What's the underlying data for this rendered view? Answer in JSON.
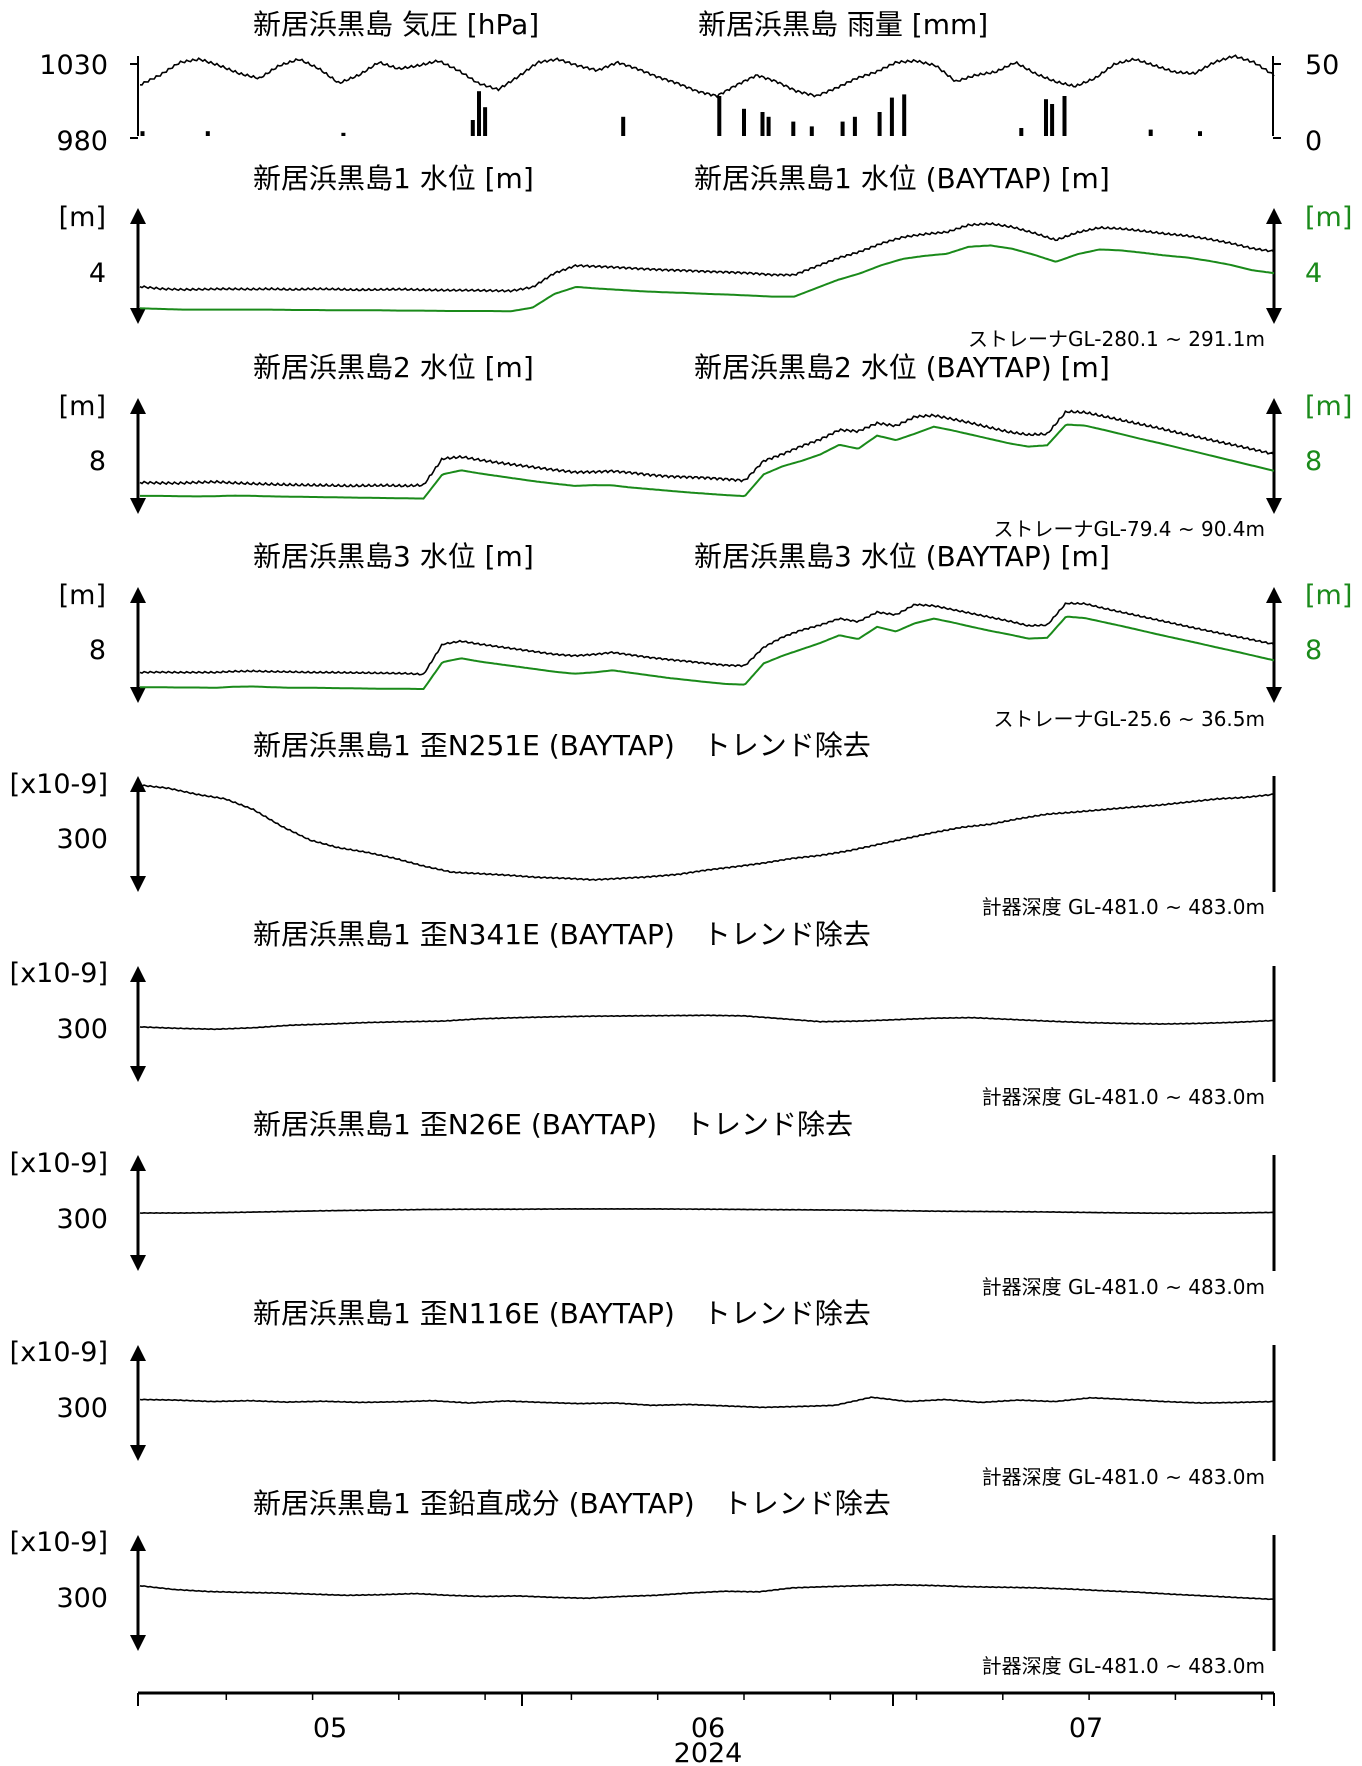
{
  "colors": {
    "primary": "#000000",
    "secondary": "#1a8a1a"
  },
  "time_axis": {
    "ticks": [
      "05",
      "06",
      "07"
    ],
    "year": "2024"
  },
  "chart_data": [
    {
      "id": "pressure_rain",
      "type": "line",
      "title_left": "新居浜黒島 気圧 [hPa]",
      "title_right": "新居浜黒島 雨量 [mm]",
      "y_ticks_left": [
        "1030",
        "980"
      ],
      "y_ticks_right": [
        "50",
        "0"
      ],
      "ylim_left": [
        980,
        1030
      ],
      "ylim_right": [
        0,
        50
      ],
      "x_range": [
        "2024-04-15",
        "2024-07-15"
      ],
      "series": [
        {
          "color": "#000000",
          "kind": "line",
          "values": [
            1012,
            1018,
            1026,
            1028,
            1024,
            1019,
            1016,
            1024,
            1028,
            1022,
            1013,
            1018,
            1026,
            1022,
            1024,
            1027,
            1021,
            1013,
            1009,
            1017,
            1026,
            1028,
            1024,
            1021,
            1026,
            1022,
            1017,
            1013,
            1008,
            1005,
            1012,
            1018,
            1014,
            1008,
            1005,
            1010,
            1016,
            1020,
            1026,
            1027,
            1024,
            1014,
            1018,
            1020,
            1026,
            1019,
            1014,
            1011,
            1016,
            1025,
            1028,
            1024,
            1020,
            1019,
            1026,
            1030,
            1026,
            1018
          ]
        },
        {
          "color": "#000000",
          "kind": "bars",
          "events": [
            [
              0.2,
              3
            ],
            [
              5.5,
              3
            ],
            [
              16.5,
              2
            ],
            [
              27,
              10
            ],
            [
              27.5,
              28
            ],
            [
              28,
              18
            ],
            [
              39.2,
              12
            ],
            [
              47,
              25
            ],
            [
              49,
              17
            ],
            [
              50.5,
              15
            ],
            [
              51,
              12
            ],
            [
              53,
              9
            ],
            [
              54.5,
              6
            ],
            [
              57,
              9
            ],
            [
              58,
              12
            ],
            [
              60,
              15
            ],
            [
              61,
              24
            ],
            [
              62,
              26
            ],
            [
              71.5,
              5
            ],
            [
              73.5,
              23
            ],
            [
              74,
              20
            ],
            [
              75,
              25
            ],
            [
              82,
              4
            ],
            [
              86,
              3
            ]
          ]
        }
      ]
    },
    {
      "id": "wl1",
      "type": "line",
      "title_left": "新居浜黒島1 水位 [m]",
      "title_right": "新居浜黒島1 水位 (BAYTAP) [m]",
      "unit_left": "[m]",
      "unit_right": "[m]",
      "tick_left": "4",
      "tick_right": "4",
      "note": "ストレーナGL-280.1 ~ 291.1m",
      "series": [
        {
          "color": "#000000",
          "values": [
            3.6,
            3.53,
            3.51,
            3.52,
            3.53,
            3.52,
            3.53,
            3.51,
            3.53,
            3.52,
            3.5,
            3.51,
            3.52,
            3.5,
            3.49,
            3.49,
            3.48,
            3.47,
            3.58,
            4.0,
            4.23,
            4.2,
            4.17,
            4.13,
            4.1,
            4.08,
            4.05,
            4.03,
            4.0,
            3.95,
            3.95,
            4.2,
            4.45,
            4.64,
            4.89,
            5.08,
            5.17,
            5.23,
            5.44,
            5.48,
            5.38,
            5.2,
            4.99,
            5.22,
            5.36,
            5.33,
            5.26,
            5.18,
            5.12,
            5.02,
            4.9,
            4.74,
            4.65
          ]
        },
        {
          "color": "#1a8a1a",
          "values": [
            2.95,
            2.93,
            2.91,
            2.91,
            2.91,
            2.91,
            2.91,
            2.9,
            2.9,
            2.89,
            2.89,
            2.89,
            2.88,
            2.88,
            2.87,
            2.87,
            2.87,
            2.86,
            2.97,
            3.38,
            3.59,
            3.54,
            3.5,
            3.46,
            3.43,
            3.41,
            3.38,
            3.36,
            3.33,
            3.3,
            3.3,
            3.55,
            3.8,
            3.99,
            4.24,
            4.43,
            4.52,
            4.58,
            4.79,
            4.83,
            4.73,
            4.55,
            4.34,
            4.57,
            4.71,
            4.68,
            4.61,
            4.53,
            4.47,
            4.37,
            4.25,
            4.09,
            4.0
          ]
        }
      ]
    },
    {
      "id": "wl2",
      "type": "line",
      "title_left": "新居浜黒島2 水位 [m]",
      "title_right": "新居浜黒島2 水位 (BAYTAP) [m]",
      "unit_left": "[m]",
      "unit_right": "[m]",
      "tick_left": "8",
      "tick_right": "8",
      "note": "ストレーナGL-79.4 ~ 90.4m",
      "series": [
        {
          "color": "#000000",
          "values": [
            7.35,
            7.33,
            7.32,
            7.35,
            7.37,
            7.33,
            7.3,
            7.28,
            7.26,
            7.25,
            7.24,
            7.22,
            7.23,
            7.24,
            7.22,
            7.25,
            8.23,
            8.3,
            8.18,
            8.08,
            7.99,
            7.9,
            7.81,
            7.73,
            7.74,
            7.77,
            7.71,
            7.63,
            7.57,
            7.55,
            7.52,
            7.47,
            7.42,
            8.15,
            8.4,
            8.7,
            8.95,
            9.3,
            9.25,
            9.55,
            9.45,
            9.79,
            9.84,
            9.7,
            9.55,
            9.38,
            9.22,
            9.12,
            9.15,
            9.98,
            9.95,
            9.8,
            9.65,
            9.5,
            9.35,
            9.18,
            9.03,
            8.87,
            8.72,
            8.56,
            8.4
          ]
        },
        {
          "color": "#1a8a1a",
          "values": [
            6.85,
            6.85,
            6.84,
            6.83,
            6.84,
            6.86,
            6.85,
            6.83,
            6.82,
            6.81,
            6.8,
            6.79,
            6.78,
            6.77,
            6.76,
            6.75,
            7.65,
            7.8,
            7.68,
            7.58,
            7.48,
            7.38,
            7.3,
            7.22,
            7.25,
            7.24,
            7.16,
            7.1,
            7.04,
            6.98,
            6.93,
            6.88,
            6.84,
            7.65,
            7.95,
            8.15,
            8.39,
            8.75,
            8.6,
            9.09,
            8.92,
            9.16,
            9.42,
            9.28,
            9.12,
            8.96,
            8.8,
            8.68,
            8.73,
            9.5,
            9.46,
            9.3,
            9.13,
            8.96,
            8.8,
            8.63,
            8.46,
            8.29,
            8.12,
            7.95,
            7.78
          ]
        }
      ]
    },
    {
      "id": "wl3",
      "type": "line",
      "title_left": "新居浜黒島3 水位 [m]",
      "title_right": "新居浜黒島3 水位 (BAYTAP) [m]",
      "unit_left": "[m]",
      "unit_right": "[m]",
      "tick_left": "8",
      "tick_right": "8",
      "note": "ストレーナGL-25.6 ~ 36.5m",
      "series": [
        {
          "color": "#000000",
          "values": [
            7.7,
            7.71,
            7.7,
            7.7,
            7.7,
            7.74,
            7.75,
            7.73,
            7.72,
            7.7,
            7.7,
            7.69,
            7.68,
            7.67,
            7.66,
            7.62,
            8.8,
            8.92,
            8.8,
            8.7,
            8.6,
            8.5,
            8.4,
            8.35,
            8.4,
            8.48,
            8.38,
            8.28,
            8.2,
            8.13,
            8.05,
            7.98,
            7.96,
            8.68,
            9.08,
            9.35,
            9.55,
            9.8,
            9.68,
            10.05,
            9.95,
            10.35,
            10.3,
            10.15,
            10.0,
            9.85,
            9.7,
            9.52,
            9.55,
            10.4,
            10.38,
            10.2,
            10.04,
            9.88,
            9.72,
            9.56,
            9.4,
            9.25,
            9.1,
            8.95,
            8.8
          ]
        },
        {
          "color": "#1a8a1a",
          "values": [
            7.12,
            7.12,
            7.11,
            7.11,
            7.1,
            7.14,
            7.15,
            7.12,
            7.1,
            7.1,
            7.09,
            7.08,
            7.07,
            7.06,
            7.06,
            7.05,
            8.1,
            8.25,
            8.12,
            8.02,
            7.92,
            7.82,
            7.72,
            7.65,
            7.7,
            7.78,
            7.68,
            7.58,
            7.48,
            7.4,
            7.32,
            7.25,
            7.22,
            8.05,
            8.35,
            8.6,
            8.85,
            9.15,
            9.0,
            9.48,
            9.3,
            9.62,
            9.8,
            9.65,
            9.48,
            9.32,
            9.18,
            9.02,
            9.05,
            9.88,
            9.82,
            9.66,
            9.5,
            9.33,
            9.16,
            9.0,
            8.84,
            8.67,
            8.51,
            8.34,
            8.17
          ]
        }
      ]
    },
    {
      "id": "strain_n251e",
      "type": "line",
      "title": "新居浜黒島1 歪N251E (BAYTAP)　トレンド除去",
      "unit": "[x10-9]",
      "tick": "300",
      "note": "計器深度 GL-481.0 ~ 483.0m",
      "series": [
        {
          "color": "#000000",
          "values": [
            450,
            440,
            420,
            405,
            370,
            315,
            270,
            245,
            230,
            210,
            185,
            165,
            160,
            155,
            148,
            145,
            140,
            145,
            150,
            158,
            172,
            183,
            195,
            210,
            220,
            235,
            255,
            275,
            295,
            312,
            322,
            340,
            355,
            362,
            370,
            378,
            385,
            395,
            405,
            410,
            420
          ]
        }
      ]
    },
    {
      "id": "strain_n341e",
      "type": "line",
      "title": "新居浜黒島1 歪N341E (BAYTAP)　トレンド除去",
      "unit": "[x10-9]",
      "tick": "300",
      "note": "計器深度 GL-481.0 ~ 483.0m",
      "series": [
        {
          "color": "#000000",
          "values": [
            290,
            285,
            282,
            287,
            296,
            300,
            305,
            308,
            310,
            318,
            322,
            325,
            327,
            328,
            329,
            330,
            328,
            318,
            308,
            310,
            315,
            320,
            322,
            316,
            310,
            305,
            302,
            300,
            302,
            306,
            312
          ]
        }
      ]
    },
    {
      "id": "strain_n26e",
      "type": "line",
      "title": "新居浜黒島1 歪N26E (BAYTAP)　トレンド除去",
      "unit": "[x10-9]",
      "tick": "300",
      "note": "計器深度 GL-481.0 ~ 483.0m",
      "series": [
        {
          "color": "#000000",
          "values": [
            300,
            300,
            302,
            305,
            308,
            310,
            312,
            313,
            313,
            314,
            314,
            314,
            313,
            312,
            311,
            310,
            308,
            306,
            305,
            304,
            302,
            300,
            299,
            300,
            302
          ]
        }
      ]
    },
    {
      "id": "strain_n116e",
      "type": "line",
      "title": "新居浜黒島1 歪N116E (BAYTAP)　トレンド除去",
      "unit": "[x10-9]",
      "tick": "300",
      "note": "計器深度 GL-481.0 ~ 483.0m",
      "series": [
        {
          "color": "#000000",
          "values": [
            312,
            310,
            305,
            308,
            303,
            306,
            302,
            304,
            308,
            300,
            307,
            302,
            298,
            300,
            292,
            295,
            290,
            285,
            288,
            292,
            320,
            305,
            312,
            302,
            310,
            305,
            318,
            312,
            305,
            300,
            302,
            305
          ]
        }
      ]
    },
    {
      "id": "strain_vertical",
      "type": "line",
      "title": "新居浜黒島1 歪鉛直成分 (BAYTAP)　トレンド除去",
      "unit": "[x10-9]",
      "tick": "300",
      "note": "計器深度 GL-481.0 ~ 483.0m",
      "series": [
        {
          "color": "#000000",
          "values": [
            325,
            312,
            305,
            302,
            300,
            296,
            292,
            294,
            298,
            292,
            288,
            290,
            285,
            282,
            288,
            292,
            300,
            306,
            304,
            318,
            322,
            325,
            328,
            326,
            322,
            320,
            318,
            314,
            308,
            303,
            296,
            290,
            284,
            278
          ]
        }
      ]
    }
  ]
}
